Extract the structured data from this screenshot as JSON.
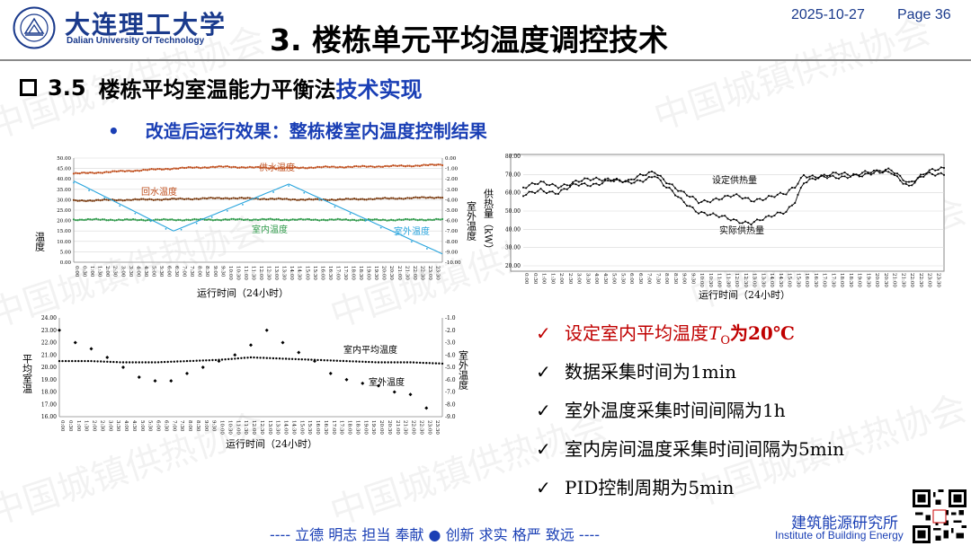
{
  "header": {
    "university_cn": "大连理工大学",
    "university_en": "Dalian University Of Technology",
    "seal_text": "DALIAN UNIVERSITY OF TECHNOLOGY",
    "title": "3. 楼栋单元平均温度调控技术",
    "date": "2025-10-27",
    "page": "Page 36"
  },
  "section": {
    "number": "3.5",
    "title_main": "楼栋平均室温能力平衡法",
    "title_highlight": "技术实现"
  },
  "bullet": {
    "symbol": "•",
    "text": "改造后运行效果：整栋楼室内温度控制结果"
  },
  "checklist": [
    {
      "mark": "✓",
      "text_a": "设定室内平均温度",
      "var": "T",
      "sub": "O",
      "text_b": "为20℃"
    },
    {
      "mark": "✓",
      "text": "数据采集时间为1min"
    },
    {
      "mark": "✓",
      "text": "室外温度采集时间间隔为1h"
    },
    {
      "mark": "✓",
      "text": "室内房间温度采集时间间隔为5min"
    },
    {
      "mark": "✓",
      "text": "PID控制周期为5min"
    }
  ],
  "footer": {
    "motto": "----  立德   明志   担当   奉献    ●    创新   求实   格严   致远   ----",
    "institute_cn": "建筑能源研究所",
    "institute_en": "Institute of Building Energy"
  },
  "watermark": "中国城镇供热协会",
  "colors": {
    "blue": "#1a3fb5",
    "red": "#c00000",
    "navy": "#1a3a8c"
  },
  "x_ticks": [
    "0:00",
    "0:30",
    "1:00",
    "1:30",
    "2:00",
    "2:30",
    "3:00",
    "3:30",
    "4:00",
    "4:30",
    "5:00",
    "5:30",
    "6:00",
    "6:30",
    "7:00",
    "7:30",
    "8:00",
    "8:30",
    "9:00",
    "9:30",
    "10:00",
    "10:30",
    "11:00",
    "11:30",
    "12:00",
    "12:30",
    "13:00",
    "13:30",
    "14:00",
    "14:30",
    "15:00",
    "15:30",
    "16:00",
    "16:30",
    "17:00",
    "17:30",
    "18:00",
    "18:30",
    "19:00",
    "19:30",
    "20:00",
    "20:30",
    "21:00",
    "21:30",
    "22:00",
    "22:30",
    "23:00",
    "23:30"
  ],
  "chart_data": [
    {
      "type": "line",
      "xlabel": "运行时间（24小时）",
      "ylabel": "温度",
      "y2label": "室外温度",
      "ylim": [
        0,
        50
      ],
      "yticks": [
        "0.00",
        "5.00",
        "10.00",
        "15.00",
        "20.00",
        "25.00",
        "30.00",
        "35.00",
        "40.00",
        "45.00",
        "50.00"
      ],
      "y2lim": [
        -10,
        0
      ],
      "y2ticks": [
        "0.00",
        "-1.00",
        "-2.00",
        "-3.00",
        "-4.00",
        "-5.00",
        "-6.00",
        "-7.00",
        "-8.00",
        "-9.00",
        "-10.00"
      ],
      "grid": "horizontal",
      "series": [
        {
          "name": "供水温度",
          "axis": "left",
          "color": "#c0501f",
          "x": [
            0,
            2,
            4,
            6,
            8,
            10,
            12,
            14,
            16,
            18,
            20,
            22,
            24
          ],
          "y": [
            42.5,
            43.2,
            44.0,
            44.8,
            45.5,
            45.8,
            45.4,
            45.2,
            45.6,
            45.8,
            46.0,
            46.3,
            46.8
          ]
        },
        {
          "name": "回水温度",
          "axis": "left",
          "color": "#7a3b10",
          "x": [
            0,
            2,
            4,
            6,
            8,
            10,
            12,
            14,
            16,
            18,
            20,
            22,
            24
          ],
          "y": [
            29.5,
            29.8,
            30.0,
            30.2,
            30.5,
            30.8,
            30.5,
            30.2,
            30.0,
            30.2,
            30.5,
            30.8,
            31.2
          ]
        },
        {
          "name": "室内温度",
          "axis": "left",
          "color": "#2e9a4a",
          "x": [
            0,
            4,
            8,
            12,
            16,
            20,
            24
          ],
          "y": [
            20.5,
            20.3,
            20.4,
            20.5,
            20.4,
            20.3,
            20.5
          ]
        },
        {
          "name": "室外温度",
          "axis": "right",
          "color": "#27a4dd",
          "x": [
            0,
            6.5,
            14,
            24
          ],
          "y": [
            -2.2,
            -7.0,
            -2.5,
            -9.2
          ]
        }
      ]
    },
    {
      "type": "line",
      "xlabel": "运行时间（24小时）",
      "ylabel": "供热量（kW）",
      "ylim": [
        20,
        80
      ],
      "yticks": [
        "20.00",
        "30.00",
        "40.00",
        "50.00",
        "60.00",
        "70.00",
        "80.00"
      ],
      "grid": "horizontal",
      "series": [
        {
          "name": "设定供热量",
          "color": "#000000",
          "x": [
            0,
            1,
            2,
            3,
            4,
            5,
            6,
            7,
            7.5,
            8,
            9,
            10,
            11,
            12,
            13,
            14,
            15,
            15.5,
            16,
            17,
            18,
            19,
            20,
            21,
            22,
            23,
            24
          ],
          "y": [
            63,
            65,
            64,
            66,
            67,
            68,
            66,
            70,
            72,
            68,
            60,
            55,
            57,
            58,
            56,
            58,
            59,
            63,
            70,
            69,
            70,
            70,
            71,
            72,
            66,
            71,
            73
          ]
        },
        {
          "name": "实际供热量",
          "color": "#000000",
          "x": [
            0,
            1,
            2,
            3,
            4,
            5,
            6,
            7,
            7.5,
            8,
            9,
            10,
            11,
            12,
            13,
            14,
            15,
            15.5,
            16,
            17,
            18,
            19,
            20,
            21,
            22,
            23,
            24
          ],
          "y": [
            58,
            62,
            60,
            64,
            65,
            67,
            65,
            68,
            70,
            64,
            56,
            50,
            47,
            45,
            44,
            46,
            50,
            56,
            66,
            68,
            69,
            70,
            71,
            72,
            63,
            70,
            71
          ]
        }
      ]
    },
    {
      "type": "scatter",
      "xlabel": "运行时间（24小时）",
      "ylabel": "平均室温",
      "y2label": "室外温度",
      "ylim": [
        16,
        24
      ],
      "yticks": [
        "16.00",
        "17.00",
        "18.00",
        "19.00",
        "20.00",
        "21.00",
        "22.00",
        "23.00",
        "24.00"
      ],
      "y2lim": [
        -9,
        -1
      ],
      "y2ticks": [
        "-1.0",
        "-2.0",
        "-3.0",
        "-4.0",
        "-5.0",
        "-6.0",
        "-7.0",
        "-8.0",
        "-9.0"
      ],
      "series": [
        {
          "name": "室内平均温度",
          "axis": "left",
          "color": "#000000",
          "x": [
            0,
            2,
            4,
            6,
            8,
            10,
            12,
            14,
            16,
            18,
            20,
            22,
            24
          ],
          "y": [
            20.5,
            20.5,
            20.4,
            20.4,
            20.5,
            20.6,
            20.8,
            20.7,
            20.6,
            20.5,
            20.4,
            20.4,
            20.3
          ]
        },
        {
          "name": "室外温度",
          "axis": "right",
          "color": "#000000",
          "x": [
            0,
            1,
            2,
            3,
            4,
            5,
            6,
            7,
            8,
            9,
            10,
            11,
            12,
            13,
            14,
            15,
            16,
            17,
            18,
            19,
            20,
            21,
            22,
            23
          ],
          "y": [
            -2.0,
            -3.0,
            -3.5,
            -4.2,
            -5.0,
            -5.8,
            -6.1,
            -6.1,
            -5.5,
            -5.0,
            -4.5,
            -4.0,
            -3.2,
            -2.0,
            -3.0,
            -3.8,
            -4.5,
            -5.5,
            -6.0,
            -6.3,
            -6.5,
            -7.0,
            -7.2,
            -8.3
          ]
        }
      ]
    }
  ]
}
